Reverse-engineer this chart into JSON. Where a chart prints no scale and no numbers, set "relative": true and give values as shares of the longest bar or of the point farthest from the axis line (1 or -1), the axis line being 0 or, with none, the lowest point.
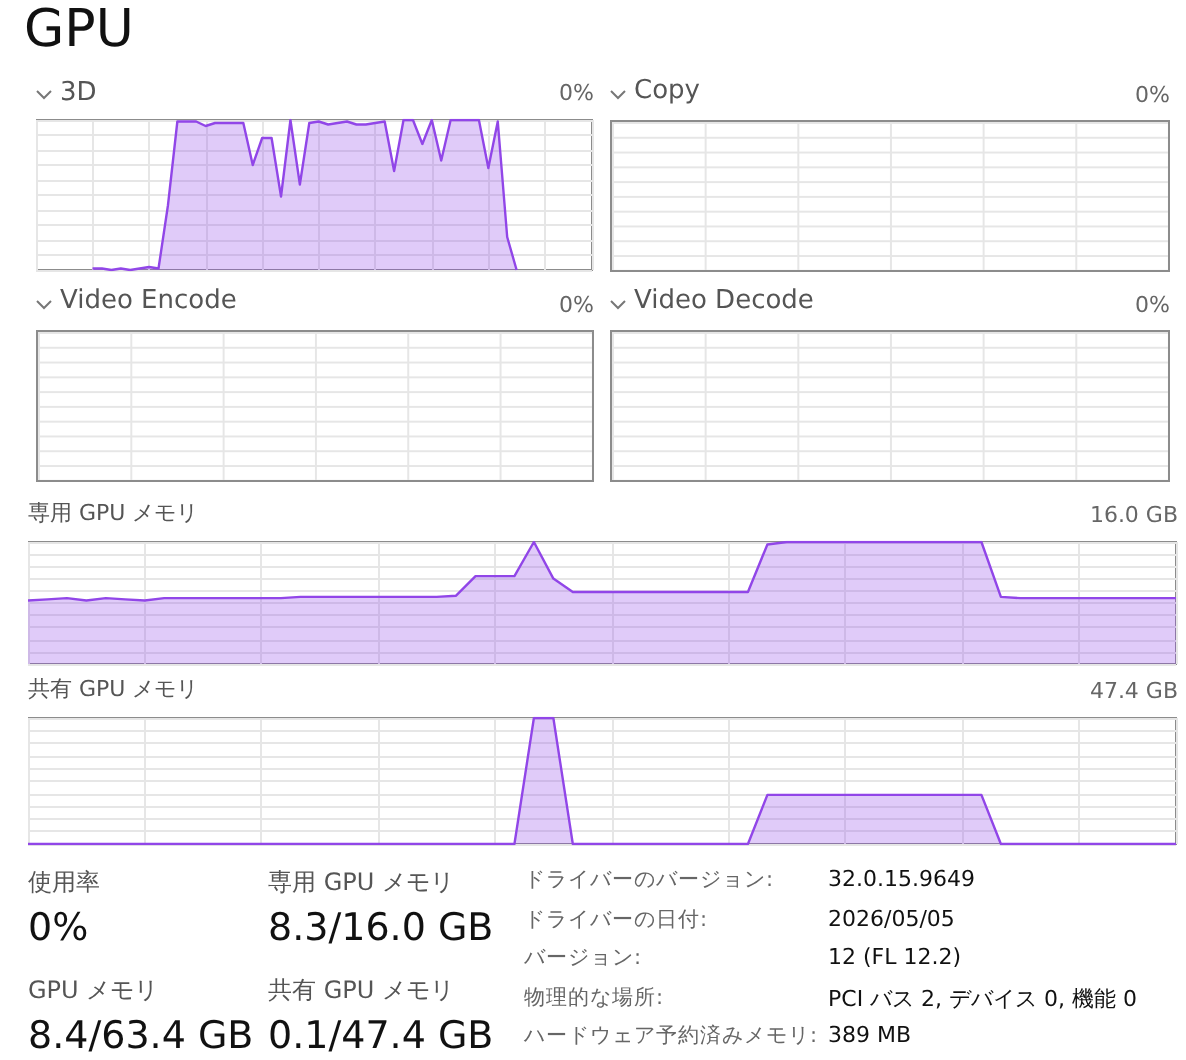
{
  "chart_data": [
    {
      "type": "other",
      "title": "GPU"
    },
    {
      "type": "area",
      "title": "3D",
      "annotations": [
        "0%"
      ],
      "color": "#9146e8",
      "relative": true,
      "grid": true,
      "tick_labels": false,
      "marker": "none",
      "categories": [
        null,
        null,
        null,
        null,
        null,
        null,
        null,
        null,
        null,
        null,
        null,
        null,
        null,
        null,
        null,
        null,
        null,
        null,
        null,
        null,
        null,
        null,
        null,
        null,
        null,
        null,
        null,
        null,
        null,
        null,
        null,
        null,
        null,
        null,
        null,
        null,
        null,
        null,
        null,
        null,
        null,
        null,
        null,
        null,
        null,
        null,
        null,
        null,
        null,
        null,
        null,
        null,
        null,
        null,
        null,
        null,
        null,
        null,
        null,
        null
      ],
      "values": [
        null,
        null,
        null,
        null,
        null,
        null,
        0.01,
        0.01,
        0.0,
        0.01,
        0.0,
        0.01,
        0.02,
        0.01,
        0.43,
        0.99,
        0.99,
        0.99,
        0.96,
        0.98,
        0.98,
        0.98,
        0.98,
        0.7,
        0.88,
        0.88,
        0.49,
        1.0,
        0.57,
        0.98,
        0.99,
        0.97,
        0.98,
        0.99,
        0.97,
        0.97,
        0.98,
        0.99,
        0.66,
        1.0,
        1.0,
        0.84,
        1.0,
        0.73,
        1.0,
        1.0,
        1.0,
        1.0,
        0.68,
        0.99,
        0.22,
        0.0,
        null,
        null,
        null,
        null,
        null,
        null,
        null,
        null
      ]
    },
    {
      "type": "other",
      "title": "Copy",
      "annotations": [
        "0%"
      ]
    },
    {
      "type": "other",
      "title": "Video Encode",
      "annotations": [
        "0%"
      ]
    },
    {
      "type": "other",
      "title": "Video Decode",
      "annotations": [
        "0%"
      ]
    },
    {
      "type": "area",
      "title": "専用 GPU メモリ",
      "annotations": [
        "16.0 GB"
      ],
      "color": "#9146e8",
      "relative": true,
      "grid": true,
      "tick_labels": false,
      "marker": "none",
      "categories": [
        null,
        null,
        null,
        null,
        null,
        null,
        null,
        null,
        null,
        null,
        null,
        null,
        null,
        null,
        null,
        null,
        null,
        null,
        null,
        null,
        null,
        null,
        null,
        null,
        null,
        null,
        null,
        null,
        null,
        null,
        null,
        null,
        null,
        null,
        null,
        null,
        null,
        null,
        null,
        null,
        null,
        null,
        null,
        null,
        null,
        null,
        null,
        null,
        null,
        null,
        null,
        null,
        null,
        null,
        null,
        null,
        null,
        null,
        null,
        null
      ],
      "values": [
        0.52,
        0.53,
        0.54,
        0.52,
        0.54,
        0.53,
        0.52,
        0.54,
        0.54,
        0.54,
        0.54,
        0.54,
        0.54,
        0.54,
        0.55,
        0.55,
        0.55,
        0.55,
        0.55,
        0.55,
        0.55,
        0.55,
        0.56,
        0.72,
        0.72,
        0.72,
        1.0,
        0.7,
        0.59,
        0.59,
        0.59,
        0.59,
        0.59,
        0.59,
        0.59,
        0.59,
        0.59,
        0.59,
        0.98,
        1.0,
        1.0,
        1.0,
        1.0,
        1.0,
        1.0,
        1.0,
        1.0,
        1.0,
        1.0,
        1.0,
        0.55,
        0.54,
        0.54,
        0.54,
        0.54,
        0.54,
        0.54,
        0.54,
        0.54,
        0.54
      ]
    },
    {
      "type": "area",
      "title": "共有 GPU メモリ",
      "annotations": [
        "47.4 GB"
      ],
      "color": "#9146e8",
      "relative": true,
      "grid": true,
      "tick_labels": false,
      "marker": "none",
      "categories": [
        null,
        null,
        null,
        null,
        null,
        null,
        null,
        null,
        null,
        null,
        null,
        null,
        null,
        null,
        null,
        null,
        null,
        null,
        null,
        null,
        null,
        null,
        null,
        null,
        null,
        null,
        null,
        null,
        null,
        null,
        null,
        null,
        null,
        null,
        null,
        null,
        null,
        null,
        null,
        null,
        null,
        null,
        null,
        null,
        null,
        null,
        null,
        null,
        null,
        null,
        null,
        null,
        null,
        null,
        null,
        null,
        null,
        null,
        null,
        null
      ],
      "values": [
        0,
        0,
        0,
        0,
        0,
        0,
        0,
        0,
        0,
        0,
        0,
        0,
        0,
        0,
        0,
        0,
        0,
        0,
        0,
        0,
        0,
        0,
        0,
        0,
        0,
        0,
        1.0,
        1.0,
        0,
        0,
        0,
        0,
        0,
        0,
        0,
        0,
        0,
        0,
        0.39,
        0.39,
        0.39,
        0.39,
        0.39,
        0.39,
        0.39,
        0.39,
        0.39,
        0.39,
        0.39,
        0.39,
        0,
        0,
        0,
        0,
        0,
        0,
        0,
        0,
        0,
        0
      ]
    },
    {
      "type": "other",
      "annotations": [
        "使用率",
        "0%",
        "専用 GPU メモリ",
        "8.3/16.0 GB",
        "GPU メモリ",
        "8.4/63.4 GB",
        "共有 GPU メモリ",
        "0.1/47.4 GB",
        "ドライバーのバージョン:",
        "32.0.15.9649",
        "ドライバーの日付:",
        "2026/05/05",
        "バージョン:",
        "12 (FL 12.2)",
        "物理的な場所:",
        "PCI バス 2, デバイス 0, 機能 0",
        "ハードウェア予約済みメモリ:",
        "389 MB"
      ]
    }
  ]
}
